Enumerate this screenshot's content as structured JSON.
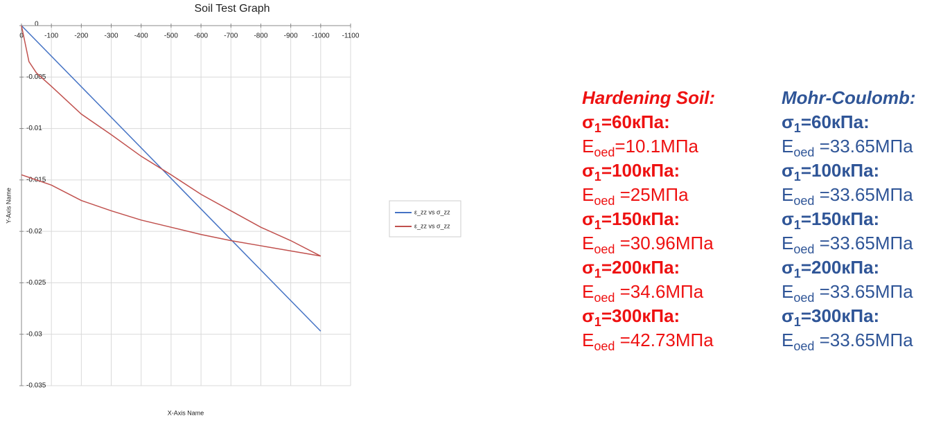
{
  "chart_data": {
    "type": "line",
    "title": "Soil Test Graph",
    "x_label": "X-Axis Name",
    "y_label": "Y-Axis Name",
    "xlim": [
      0,
      -1100
    ],
    "xticks": [
      0,
      -100,
      -200,
      -300,
      -400,
      -500,
      -600,
      -700,
      -800,
      -900,
      -1000,
      -1100
    ],
    "ylim": [
      -0.035,
      0
    ],
    "yticks": [
      0,
      -0.005,
      -0.01,
      -0.015,
      -0.02,
      -0.025,
      -0.03,
      -0.035
    ],
    "grid": true,
    "legend": "right",
    "series": [
      {
        "name": "ε_zz vs σ_zz",
        "color": "#4472c4",
        "x": [
          0,
          -1000
        ],
        "values": [
          0,
          -0.0297
        ]
      },
      {
        "name": "ε_zz vs σ_zz",
        "color": "#c0504d",
        "x": [
          0,
          -25,
          -50,
          -100,
          -200,
          -300,
          -400,
          -500,
          -600,
          -700,
          -800,
          -900,
          -1000
        ],
        "values": [
          0,
          -0.0035,
          -0.0046,
          -0.0059,
          -0.0086,
          -0.0106,
          -0.0127,
          -0.0145,
          -0.0164,
          -0.018,
          -0.0196,
          -0.0209,
          -0.0224
        ]
      },
      {
        "name": "ε_zz vs σ_zz",
        "color": "#c0504d",
        "x": [
          0,
          -100,
          -200,
          -300,
          -400,
          -500,
          -600,
          -700,
          -800,
          -900,
          -1000
        ],
        "values": [
          -0.0145,
          -0.0155,
          -0.017,
          -0.018,
          -0.0189,
          -0.0196,
          -0.0203,
          -0.0209,
          -0.0214,
          -0.0219,
          -0.0224
        ]
      }
    ]
  },
  "panels": [
    {
      "heading": "Hardening Soil:",
      "rows": [
        {
          "stress": {
            "symbol": "σ",
            "sub": "1",
            "text": "=60кПа:"
          },
          "modulus": {
            "symbol": "E",
            "sub": "oed",
            "text": "=10.1МПа"
          }
        },
        {
          "stress": {
            "symbol": "σ",
            "sub": "1",
            "text": "=100кПа:"
          },
          "modulus": {
            "symbol": "E",
            "sub": "oed",
            "text": " =25МПа"
          }
        },
        {
          "stress": {
            "symbol": "σ",
            "sub": "1",
            "text": "=150кПа:"
          },
          "modulus": {
            "symbol": "E",
            "sub": "oed",
            "text": " =30.96МПа"
          }
        },
        {
          "stress": {
            "symbol": "σ",
            "sub": "1",
            "text": "=200кПа:"
          },
          "modulus": {
            "symbol": "E",
            "sub": "oed",
            "text": " =34.6МПа"
          }
        },
        {
          "stress": {
            "symbol": "σ",
            "sub": "1",
            "text": "=300кПа:"
          },
          "modulus": {
            "symbol": "E",
            "sub": "oed",
            "text": " =42.73МПа"
          }
        }
      ]
    },
    {
      "heading": "Mohr-Coulomb:",
      "rows": [
        {
          "stress": {
            "symbol": "σ",
            "sub": "1",
            "text": "=60кПа:"
          },
          "modulus": {
            "symbol": "E",
            "sub": "oed",
            "text": " =33.65МПа"
          }
        },
        {
          "stress": {
            "symbol": "σ",
            "sub": "1",
            "text": "=100кПа:"
          },
          "modulus": {
            "symbol": "E",
            "sub": "oed",
            "text": " =33.65МПа"
          }
        },
        {
          "stress": {
            "symbol": "σ",
            "sub": "1",
            "text": "=150кПа:"
          },
          "modulus": {
            "symbol": "E",
            "sub": "oed",
            "text": " =33.65МПа"
          }
        },
        {
          "stress": {
            "symbol": "σ",
            "sub": "1",
            "text": "=200кПа:"
          },
          "modulus": {
            "symbol": "E",
            "sub": "oed",
            "text": " =33.65МПа"
          }
        },
        {
          "stress": {
            "symbol": "σ",
            "sub": "1",
            "text": "=300кПа:"
          },
          "modulus": {
            "symbol": "E",
            "sub": "oed",
            "text": " =33.65МПа"
          }
        }
      ]
    }
  ]
}
